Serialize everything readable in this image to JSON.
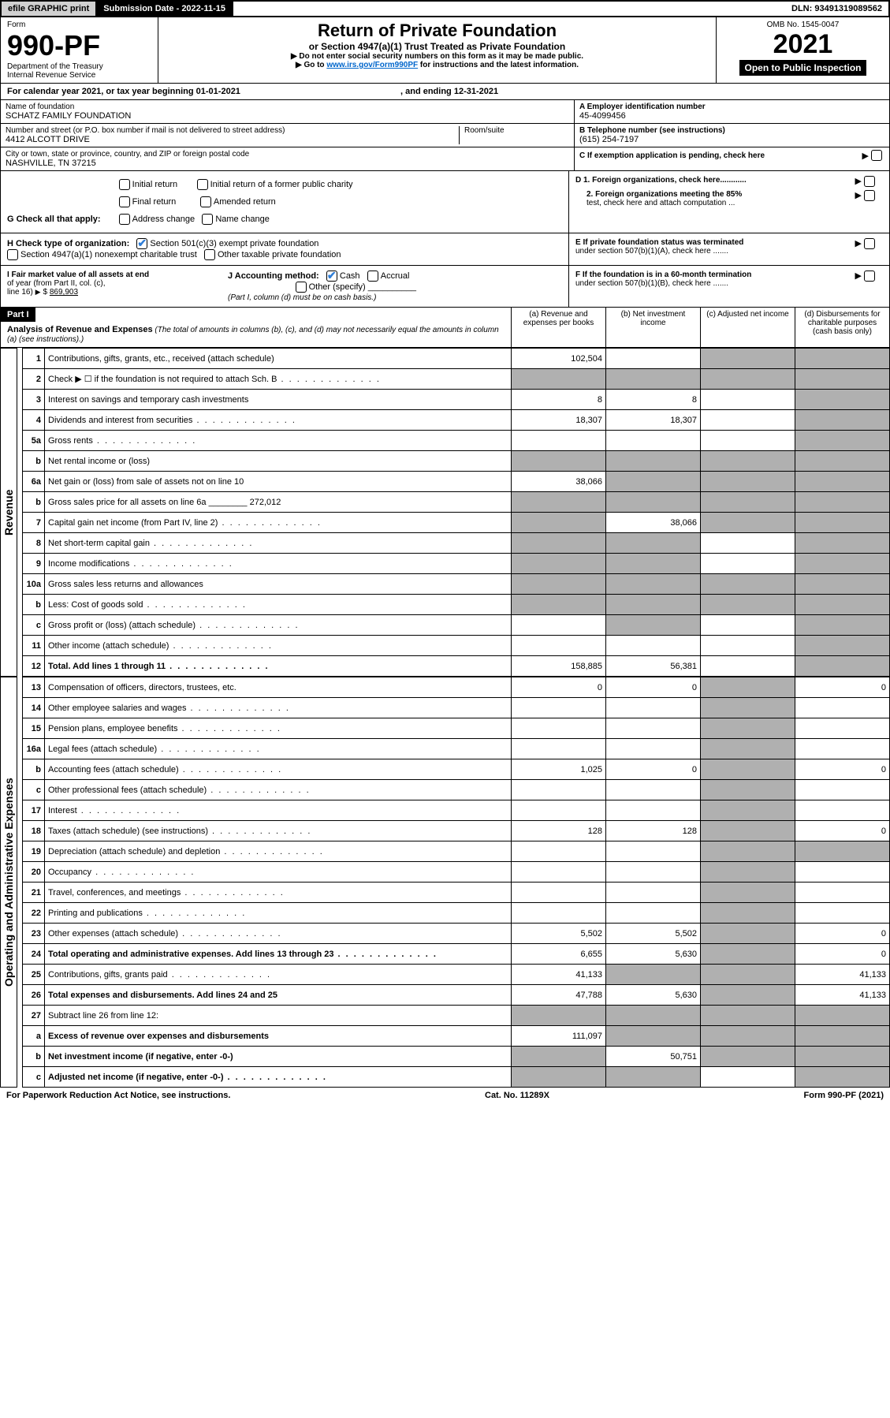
{
  "topbar": {
    "efile": "efile GRAPHIC print",
    "submission": "Submission Date - 2022-11-15",
    "dln": "DLN: 93491319089562"
  },
  "header": {
    "form_label": "Form",
    "form_no": "990-PF",
    "dept": "Department of the Treasury",
    "irs": "Internal Revenue Service",
    "title": "Return of Private Foundation",
    "subtitle": "or Section 4947(a)(1) Trust Treated as Private Foundation",
    "note1": "▶ Do not enter social security numbers on this form as it may be made public.",
    "note2_pre": "▶ Go to ",
    "note2_link": "www.irs.gov/Form990PF",
    "note2_post": " for instructions and the latest information.",
    "omb": "OMB No. 1545-0047",
    "year": "2021",
    "inspection": "Open to Public Inspection"
  },
  "calendar": {
    "text_pre": "For calendar year 2021, or tax year beginning ",
    "begin": "01-01-2021",
    "mid": ", and ending ",
    "end": "12-31-2021"
  },
  "info": {
    "name_label": "Name of foundation",
    "name": "SCHATZ FAMILY FOUNDATION",
    "addr_label": "Number and street (or P.O. box number if mail is not delivered to street address)",
    "addr": "4412 ALCOTT DRIVE",
    "room_label": "Room/suite",
    "city_label": "City or town, state or province, country, and ZIP or foreign postal code",
    "city": "NASHVILLE, TN  37215",
    "a_label": "A Employer identification number",
    "a_val": "45-4099456",
    "b_label": "B Telephone number (see instructions)",
    "b_val": "(615) 254-7197",
    "c_label": "C If exemption application is pending, check here"
  },
  "g": {
    "label": "G Check all that apply:",
    "opts": [
      "Initial return",
      "Final return",
      "Address change",
      "Initial return of a former public charity",
      "Amended return",
      "Name change"
    ]
  },
  "h": {
    "label": "H Check type of organization:",
    "o1": "Section 501(c)(3) exempt private foundation",
    "o2": "Section 4947(a)(1) nonexempt charitable trust",
    "o3": "Other taxable private foundation"
  },
  "d": {
    "d1": "D 1. Foreign organizations, check here............",
    "d2a": "2. Foreign organizations meeting the 85%",
    "d2b": "test, check here and attach computation ..."
  },
  "e": {
    "e1": "E  If private foundation status was terminated",
    "e2": "under section 507(b)(1)(A), check here ......."
  },
  "i": {
    "label_a": "I Fair market value of all assets at end",
    "label_b": "of year (from Part II, col. (c),",
    "label_c": "line 16)",
    "val": "869,903"
  },
  "j": {
    "label": "J Accounting method:",
    "cash": "Cash",
    "accrual": "Accrual",
    "other": "Other (specify)",
    "note": "(Part I, column (d) must be on cash basis.)"
  },
  "f": {
    "f1": "F  If the foundation is in a 60-month termination",
    "f2": "under section 507(b)(1)(B), check here ......."
  },
  "part1": {
    "tag": "Part I",
    "title": "Analysis of Revenue and Expenses",
    "title_note": " (The total of amounts in columns (b), (c), and (d) may not necessarily equal the amounts in column (a) (see instructions).)",
    "col_a": "(a)  Revenue and expenses per books",
    "col_b": "(b)  Net investment income",
    "col_c": "(c)  Adjusted net income",
    "col_d": "(d)  Disbursements for charitable purposes (cash basis only)"
  },
  "side": {
    "rev": "Revenue",
    "exp": "Operating and Administrative Expenses"
  },
  "rows": [
    {
      "n": "1",
      "lbl": "Contributions, gifts, grants, etc., received (attach schedule)",
      "a": "102,504",
      "b": "",
      "c": "g",
      "d": "g"
    },
    {
      "n": "2",
      "lbl": "Check ▶ ☐ if the foundation is not required to attach Sch. B",
      "dots": true,
      "a": "g",
      "b": "g",
      "c": "g",
      "d": "g"
    },
    {
      "n": "3",
      "lbl": "Interest on savings and temporary cash investments",
      "a": "8",
      "b": "8",
      "c": "",
      "d": "g"
    },
    {
      "n": "4",
      "lbl": "Dividends and interest from securities",
      "dots": true,
      "a": "18,307",
      "b": "18,307",
      "c": "",
      "d": "g"
    },
    {
      "n": "5a",
      "lbl": "Gross rents",
      "dots": true,
      "a": "",
      "b": "",
      "c": "",
      "d": "g"
    },
    {
      "n": "b",
      "lbl": "Net rental income or (loss)",
      "a": "g",
      "b": "g",
      "c": "g",
      "d": "g"
    },
    {
      "n": "6a",
      "lbl": "Net gain or (loss) from sale of assets not on line 10",
      "a": "38,066",
      "b": "g",
      "c": "g",
      "d": "g"
    },
    {
      "n": "b",
      "lbl": "Gross sales price for all assets on line 6a ________ 272,012",
      "a": "g",
      "b": "g",
      "c": "g",
      "d": "g"
    },
    {
      "n": "7",
      "lbl": "Capital gain net income (from Part IV, line 2)",
      "dots": true,
      "a": "g",
      "b": "38,066",
      "c": "g",
      "d": "g"
    },
    {
      "n": "8",
      "lbl": "Net short-term capital gain",
      "dots": true,
      "a": "g",
      "b": "g",
      "c": "",
      "d": "g"
    },
    {
      "n": "9",
      "lbl": "Income modifications",
      "dots": true,
      "a": "g",
      "b": "g",
      "c": "",
      "d": "g"
    },
    {
      "n": "10a",
      "lbl": "Gross sales less returns and allowances",
      "a": "g",
      "b": "g",
      "c": "g",
      "d": "g"
    },
    {
      "n": "b",
      "lbl": "Less: Cost of goods sold",
      "dots": true,
      "a": "g",
      "b": "g",
      "c": "g",
      "d": "g"
    },
    {
      "n": "c",
      "lbl": "Gross profit or (loss) (attach schedule)",
      "dots": true,
      "a": "",
      "b": "g",
      "c": "",
      "d": "g"
    },
    {
      "n": "11",
      "lbl": "Other income (attach schedule)",
      "dots": true,
      "a": "",
      "b": "",
      "c": "",
      "d": "g"
    },
    {
      "n": "12",
      "lbl": "Total. Add lines 1 through 11",
      "dots": true,
      "bold": true,
      "a": "158,885",
      "b": "56,381",
      "c": "",
      "d": "g"
    }
  ],
  "rows_exp": [
    {
      "n": "13",
      "lbl": "Compensation of officers, directors, trustees, etc.",
      "a": "0",
      "b": "0",
      "c": "g",
      "d": "0"
    },
    {
      "n": "14",
      "lbl": "Other employee salaries and wages",
      "dots": true,
      "a": "",
      "b": "",
      "c": "g",
      "d": ""
    },
    {
      "n": "15",
      "lbl": "Pension plans, employee benefits",
      "dots": true,
      "a": "",
      "b": "",
      "c": "g",
      "d": ""
    },
    {
      "n": "16a",
      "lbl": "Legal fees (attach schedule)",
      "dots": true,
      "a": "",
      "b": "",
      "c": "g",
      "d": ""
    },
    {
      "n": "b",
      "lbl": "Accounting fees (attach schedule)",
      "dots": true,
      "a": "1,025",
      "b": "0",
      "c": "g",
      "d": "0"
    },
    {
      "n": "c",
      "lbl": "Other professional fees (attach schedule)",
      "dots": true,
      "a": "",
      "b": "",
      "c": "g",
      "d": ""
    },
    {
      "n": "17",
      "lbl": "Interest",
      "dots": true,
      "a": "",
      "b": "",
      "c": "g",
      "d": ""
    },
    {
      "n": "18",
      "lbl": "Taxes (attach schedule) (see instructions)",
      "dots": true,
      "a": "128",
      "b": "128",
      "c": "g",
      "d": "0"
    },
    {
      "n": "19",
      "lbl": "Depreciation (attach schedule) and depletion",
      "dots": true,
      "a": "",
      "b": "",
      "c": "g",
      "d": "g"
    },
    {
      "n": "20",
      "lbl": "Occupancy",
      "dots": true,
      "a": "",
      "b": "",
      "c": "g",
      "d": ""
    },
    {
      "n": "21",
      "lbl": "Travel, conferences, and meetings",
      "dots": true,
      "a": "",
      "b": "",
      "c": "g",
      "d": ""
    },
    {
      "n": "22",
      "lbl": "Printing and publications",
      "dots": true,
      "a": "",
      "b": "",
      "c": "g",
      "d": ""
    },
    {
      "n": "23",
      "lbl": "Other expenses (attach schedule)",
      "dots": true,
      "a": "5,502",
      "b": "5,502",
      "c": "g",
      "d": "0"
    },
    {
      "n": "24",
      "lbl": "Total operating and administrative expenses. Add lines 13 through 23",
      "dots": true,
      "bold": true,
      "a": "6,655",
      "b": "5,630",
      "c": "g",
      "d": "0"
    },
    {
      "n": "25",
      "lbl": "Contributions, gifts, grants paid",
      "dots": true,
      "a": "41,133",
      "b": "g",
      "c": "g",
      "d": "41,133"
    },
    {
      "n": "26",
      "lbl": "Total expenses and disbursements. Add lines 24 and 25",
      "bold": true,
      "a": "47,788",
      "b": "5,630",
      "c": "g",
      "d": "41,133"
    },
    {
      "n": "27",
      "lbl": "Subtract line 26 from line 12:",
      "a": "g",
      "b": "g",
      "c": "g",
      "d": "g"
    },
    {
      "n": "a",
      "lbl": "Excess of revenue over expenses and disbursements",
      "bold": true,
      "a": "111,097",
      "b": "g",
      "c": "g",
      "d": "g"
    },
    {
      "n": "b",
      "lbl": "Net investment income (if negative, enter -0-)",
      "bold": true,
      "a": "g",
      "b": "50,751",
      "c": "g",
      "d": "g"
    },
    {
      "n": "c",
      "lbl": "Adjusted net income (if negative, enter -0-)",
      "dots": true,
      "bold": true,
      "a": "g",
      "b": "g",
      "c": "",
      "d": "g"
    }
  ],
  "footer": {
    "left": "For Paperwork Reduction Act Notice, see instructions.",
    "mid": "Cat. No. 11289X",
    "right": "Form 990-PF (2021)"
  },
  "colors": {
    "grey": "#b0b0b0",
    "link": "#0066cc",
    "check": "#2e7dd7"
  }
}
